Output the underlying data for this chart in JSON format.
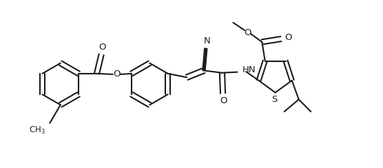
{
  "bg_color": "#ffffff",
  "line_color": "#1a1a1a",
  "line_width": 1.5,
  "figsize": [
    5.56,
    2.44
  ],
  "dpi": 100,
  "xlim": [
    0.0,
    10.0
  ],
  "ylim": [
    0.0,
    4.4
  ]
}
